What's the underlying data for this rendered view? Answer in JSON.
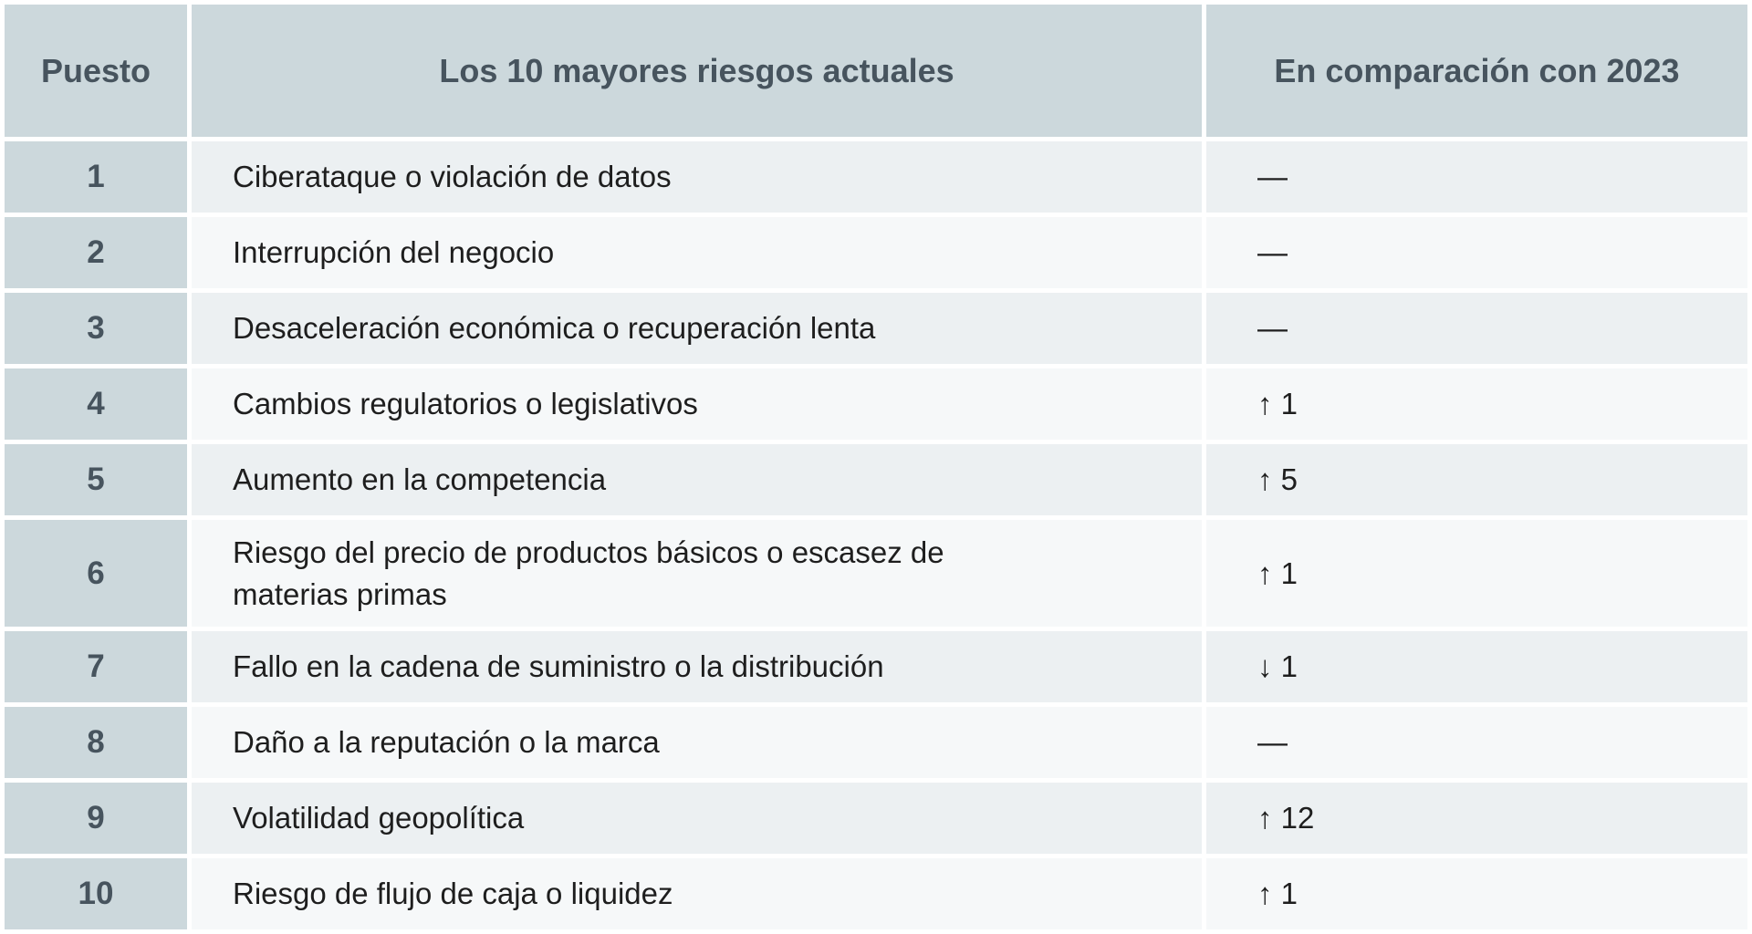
{
  "colors": {
    "header_background": "#ccd8dc",
    "rank_column_background": "#ccd8dc",
    "row_odd_background": "#ecf0f2",
    "row_even_background": "#f6f8f9",
    "header_text": "#47545e",
    "body_text": "#1e1e1e",
    "gutter": "#ffffff"
  },
  "chart_data": {
    "type": "table",
    "title": "Los 10 mayores riesgos actuales",
    "legend_position": "none",
    "grid": "white-gutters-between-cells",
    "columns": [
      {
        "id": "rank",
        "label": "Puesto"
      },
      {
        "id": "risk",
        "label": "Los 10 mayores riesgos actuales"
      },
      {
        "id": "change",
        "label": "En comparación con 2023"
      }
    ],
    "rows": [
      {
        "rank": "1",
        "risk": "Ciberataque o violación de datos",
        "change": "—",
        "change_direction": "none",
        "change_value": 0
      },
      {
        "rank": "2",
        "risk": "Interrupción del negocio",
        "change": "—",
        "change_direction": "none",
        "change_value": 0
      },
      {
        "rank": "3",
        "risk": "Desaceleración económica o recuperación lenta",
        "change": "—",
        "change_direction": "none",
        "change_value": 0
      },
      {
        "rank": "4",
        "risk": "Cambios regulatorios o legislativos",
        "change": "↑ 1",
        "change_direction": "up",
        "change_value": 1
      },
      {
        "rank": "5",
        "risk": "Aumento en la competencia",
        "change": "↑ 5",
        "change_direction": "up",
        "change_value": 5
      },
      {
        "rank": "6",
        "risk": "Riesgo del precio de productos básicos o escasez de materias primas",
        "change": "↑ 1",
        "change_direction": "up",
        "change_value": 1
      },
      {
        "rank": "7",
        "risk": "Fallo en la cadena de suministro o la distribución",
        "change": "↓ 1",
        "change_direction": "down",
        "change_value": 1
      },
      {
        "rank": "8",
        "risk": "Daño a la reputación o la marca",
        "change": "—",
        "change_direction": "none",
        "change_value": 0
      },
      {
        "rank": "9",
        "risk": "Volatilidad geopolítica",
        "change": "↑ 12",
        "change_direction": "up",
        "change_value": 12
      },
      {
        "rank": "10",
        "risk": "Riesgo de flujo de caja o liquidez",
        "change": "↑ 1",
        "change_direction": "up",
        "change_value": 1
      }
    ]
  }
}
